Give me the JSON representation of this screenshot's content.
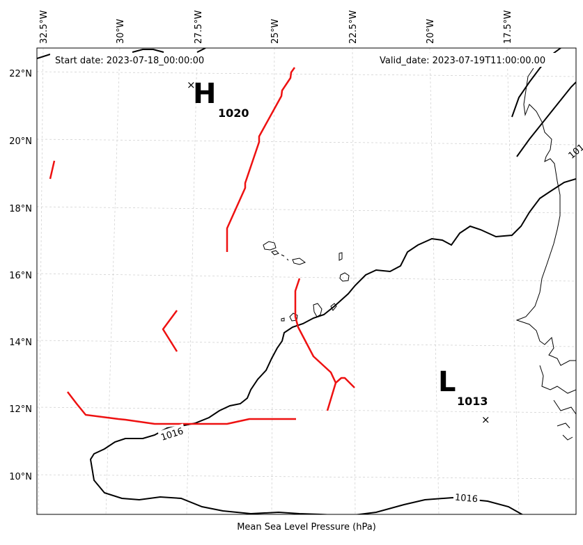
{
  "header": {
    "start_date": "Start date: 2023-07-18_00:00:00",
    "valid_date": "Valid_date: 2023-07-19T11:00:00.00"
  },
  "xlabel": "Mean Sea Level Pressure (hPa)",
  "lon_ticks": [
    "32.5°W",
    "30°W",
    "27.5°W",
    "25°W",
    "22.5°W",
    "20°W",
    "17.5°W"
  ],
  "lat_ticks": [
    "22°N",
    "20°N",
    "18°N",
    "16°N",
    "14°N",
    "12°N",
    "10°N"
  ],
  "pressure_systems": [
    {
      "symbol": "H",
      "value": "1020",
      "kind": "high"
    },
    {
      "symbol": "L",
      "value": "1013",
      "kind": "low"
    }
  ],
  "contour_labels": [
    "1016",
    "1016",
    "101"
  ],
  "colors": {
    "isobar": "#000000",
    "trough": "#ee1111",
    "coast": "#000000",
    "grid": "#cccccc"
  }
}
